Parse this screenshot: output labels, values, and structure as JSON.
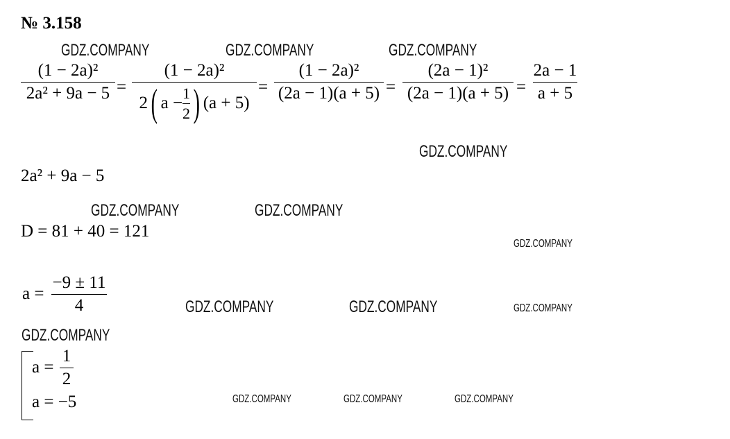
{
  "title": "№ 3.158",
  "equation": {
    "f1": {
      "num": "(1 − 2a)²",
      "den": "2a² + 9a − 5"
    },
    "f2": {
      "num": "(1 − 2a)²",
      "den_prefix": "2",
      "den_inner_a": "a −",
      "half_num": "1",
      "half_den": "2",
      "den_suffix": "(a + 5)"
    },
    "f3": {
      "num": "(1 − 2a)²",
      "den": "(2a − 1)(a + 5)"
    },
    "f4": {
      "num": "(2a − 1)²",
      "den": "(2a − 1)(a + 5)"
    },
    "f5": {
      "num": "2a − 1",
      "den": "a + 5"
    },
    "eq_sign": "="
  },
  "trinomial": "2a² + 9a − 5",
  "discriminant": "D = 81 + 40 = 121",
  "roots_formula": {
    "lhs": "a =",
    "num": "−9 ± 11",
    "den": "4"
  },
  "system": {
    "root1_lhs": "a =",
    "root1_num": "1",
    "root1_den": "2",
    "root2": "a = −5"
  },
  "watermark": "GDZ.COMPANY"
}
